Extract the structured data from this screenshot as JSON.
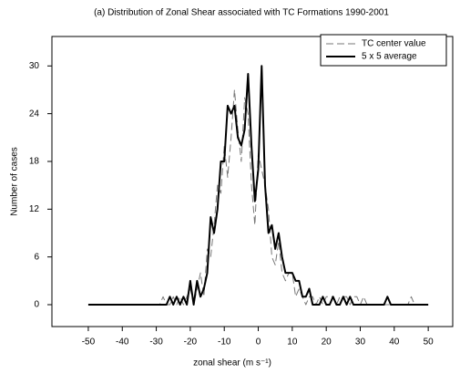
{
  "chart_data": {
    "type": "line",
    "title": "(a) Distribution of Zonal Shear associated with TC Formations 1990-2001",
    "x_label": "zonal shear (m s⁻¹)",
    "y_label": "Number of cases",
    "x": [
      -50,
      -49,
      -48,
      -47,
      -46,
      -45,
      -44,
      -43,
      -42,
      -41,
      -40,
      -39,
      -38,
      -37,
      -36,
      -35,
      -34,
      -33,
      -32,
      -31,
      -30,
      -29,
      -28,
      -27,
      -26,
      -25,
      -24,
      -23,
      -22,
      -21,
      -20,
      -19,
      -18,
      -17,
      -16,
      -15,
      -14,
      -13,
      -12,
      -11,
      -10,
      -9,
      -8,
      -7,
      -6,
      -5,
      -4,
      -3,
      -2,
      -1,
      0,
      1,
      2,
      3,
      4,
      5,
      6,
      7,
      8,
      9,
      10,
      11,
      12,
      13,
      14,
      15,
      16,
      17,
      18,
      19,
      20,
      21,
      22,
      23,
      24,
      25,
      26,
      27,
      28,
      29,
      30,
      31,
      32,
      33,
      34,
      35,
      36,
      37,
      38,
      39,
      40,
      41,
      42,
      43,
      44,
      45,
      46,
      47,
      48,
      49,
      50
    ],
    "series": [
      {
        "name": "TC center value",
        "color": "#777777",
        "style": "dashed",
        "width": 1,
        "values": [
          0,
          0,
          0,
          0,
          0,
          0,
          0,
          0,
          0,
          0,
          0,
          0,
          0,
          0,
          0,
          0,
          0,
          0,
          0,
          0,
          0,
          0,
          1,
          0,
          0,
          1,
          0,
          1,
          0,
          1,
          2,
          0,
          2,
          4,
          1,
          7,
          6,
          10,
          15,
          14,
          20,
          16,
          21,
          27,
          22,
          18,
          26,
          24,
          15,
          10,
          19,
          17,
          15,
          12,
          6,
          5,
          8,
          4,
          3,
          4,
          4,
          1,
          2,
          1,
          0,
          1,
          1,
          0,
          1,
          0,
          1,
          1,
          1,
          0,
          1,
          1,
          1,
          0,
          1,
          1,
          0,
          1,
          0,
          0,
          0,
          0,
          0,
          0,
          0,
          0,
          0,
          0,
          0,
          0,
          0,
          1,
          0,
          0,
          0,
          0,
          0
        ]
      },
      {
        "name": "5 x 5 average",
        "color": "#000000",
        "style": "solid",
        "width": 2,
        "values": [
          0,
          0,
          0,
          0,
          0,
          0,
          0,
          0,
          0,
          0,
          0,
          0,
          0,
          0,
          0,
          0,
          0,
          0,
          0,
          0,
          0,
          0,
          0,
          0,
          1,
          0,
          1,
          0,
          1,
          0,
          3,
          0,
          3,
          1,
          2,
          4,
          11,
          9,
          12,
          18,
          18,
          25,
          24,
          25,
          21,
          20,
          22,
          29,
          20,
          13,
          17,
          30,
          15,
          9,
          10,
          7,
          9,
          6,
          4,
          4,
          4,
          3,
          3,
          1,
          1,
          2,
          0,
          0,
          0,
          1,
          0,
          0,
          1,
          0,
          0,
          1,
          0,
          1,
          0,
          0,
          0,
          0,
          0,
          0,
          0,
          0,
          0,
          0,
          1,
          0,
          0,
          0,
          0,
          0,
          0,
          0,
          0,
          0,
          0,
          0,
          0
        ]
      }
    ],
    "xlim": [
      -60.7,
      57.2
    ],
    "ylim": [
      -2.75,
      33.7
    ],
    "xticks": [
      -50,
      -40,
      -30,
      -20,
      -10,
      0,
      10,
      20,
      30,
      40,
      50
    ],
    "yticks": [
      0,
      6,
      12,
      18,
      24,
      30
    ],
    "grid": false,
    "legend": "top-right"
  }
}
